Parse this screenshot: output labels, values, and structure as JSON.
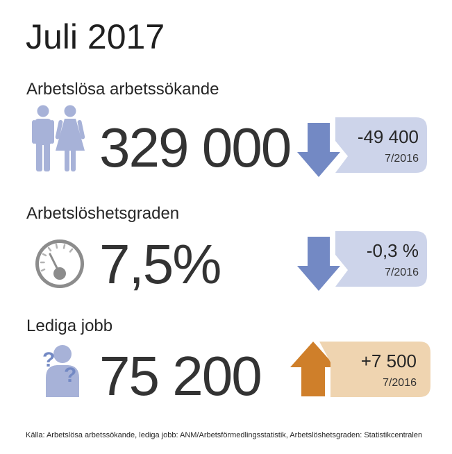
{
  "title": "Juli 2017",
  "colors": {
    "decrease_arrow": "#7389c4",
    "decrease_box": "#cdd4ea",
    "increase_arrow": "#cf7f2a",
    "increase_box": "#efd4b0",
    "icon_blue": "#a7b2d8",
    "gauge_gray": "#8c8c8c"
  },
  "indicators": [
    {
      "label": "Arbetslösa arbetssökande",
      "icon": "people-icon",
      "value": "329 000",
      "change": "-49 400",
      "change_direction": "down",
      "reference": "7/2016"
    },
    {
      "label": "Arbetslöshetsgraden",
      "icon": "gauge-icon",
      "value": "7,5%",
      "change": "-0,3 %",
      "change_direction": "down",
      "reference": "7/2016"
    },
    {
      "label": "Lediga jobb",
      "icon": "question-person-icon",
      "value": "75 200",
      "change": "+7 500",
      "change_direction": "up",
      "reference": "7/2016"
    }
  ],
  "source": "Källa: Arbetslösa arbetssökande, lediga jobb: ANM/Arbetsförmedlingsstatistik, Arbetslöshetsgraden: Statistikcentralen"
}
